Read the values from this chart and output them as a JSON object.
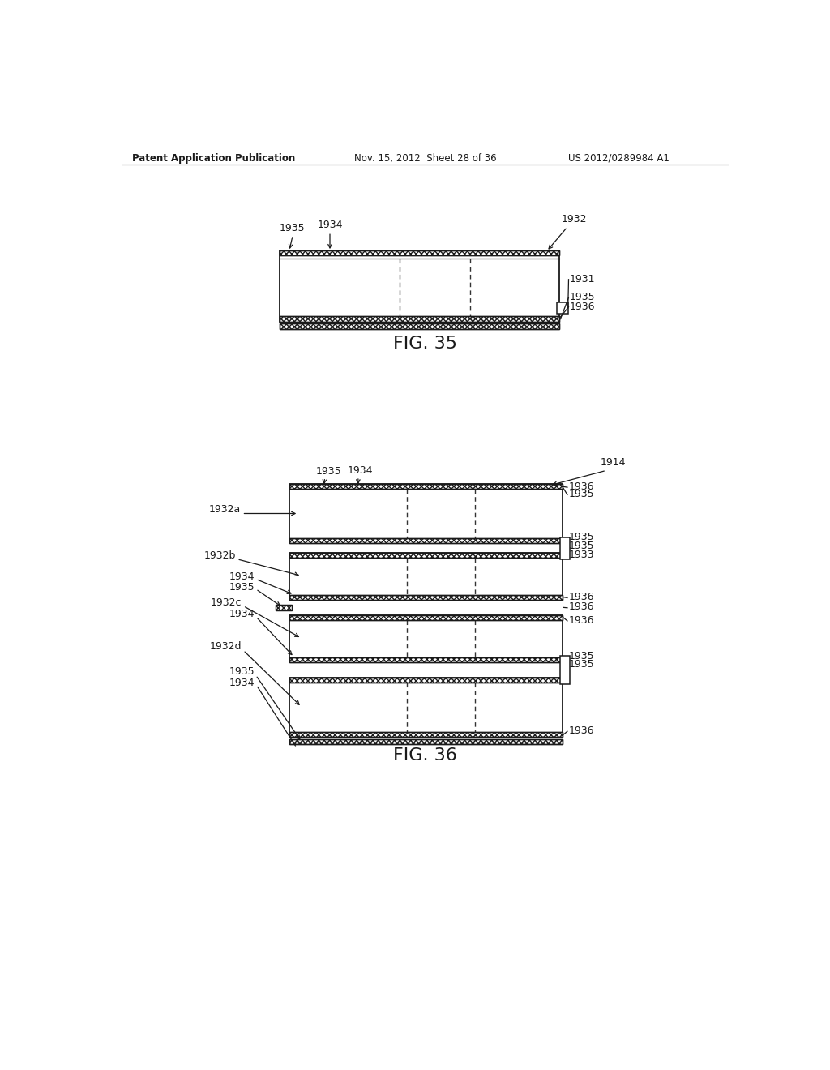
{
  "bg_color": "#ffffff",
  "header_left": "Patent Application Publication",
  "header_mid": "Nov. 15, 2012  Sheet 28 of 36",
  "header_right": "US 2012/0289984 A1",
  "fig35_label": "FIG. 35",
  "fig36_label": "FIG. 36",
  "lc": "#1a1a1a",
  "tc": "#1a1a1a"
}
